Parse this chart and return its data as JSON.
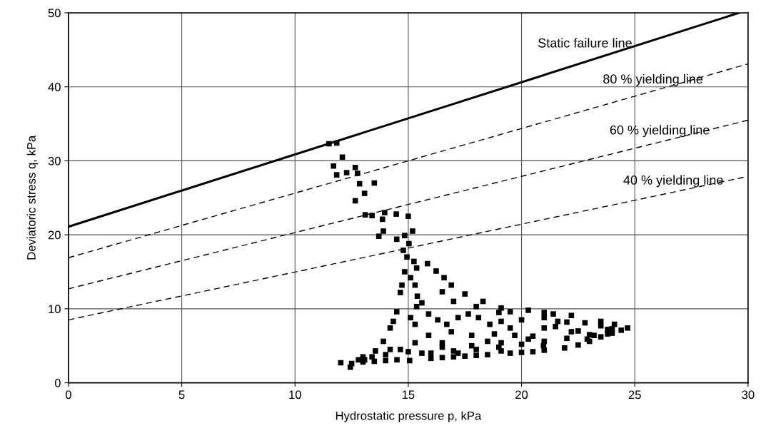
{
  "chart_data": {
    "type": "scatter",
    "xlabel": "Hydrostatic pressure p, kPa",
    "ylabel": "Deviatoric stress q, kPa",
    "xlim": [
      0,
      30
    ],
    "ylim": [
      0,
      50
    ],
    "xticks": [
      0,
      5,
      10,
      15,
      20,
      25,
      30
    ],
    "yticks": [
      0,
      10,
      20,
      30,
      40,
      50
    ],
    "grid": true,
    "legend": false,
    "series": [
      {
        "type": "line",
        "name": "Static failure line",
        "color": "#000000",
        "line_style": "solid",
        "marker": "none",
        "x": [
          0,
          29.6
        ],
        "values": [
          21.1,
          50
        ]
      },
      {
        "type": "line",
        "name": "80 % yielding line",
        "color": "#000000",
        "line_style": "dashed",
        "marker": "none",
        "x": [
          0,
          30
        ],
        "values": [
          16.9,
          43.1
        ]
      },
      {
        "type": "line",
        "name": "60 % yielding line",
        "color": "#000000",
        "line_style": "dashed",
        "marker": "none",
        "x": [
          0,
          30
        ],
        "values": [
          12.7,
          35.5
        ]
      },
      {
        "type": "line",
        "name": "40 % yielding line",
        "color": "#000000",
        "line_style": "dashed",
        "marker": "none",
        "x": [
          0,
          30
        ],
        "values": [
          8.5,
          27.9
        ]
      },
      {
        "color": "#000000",
        "marker": "square",
        "x": [
          11.5,
          11.84,
          12.09,
          11.7,
          11.84,
          12.28,
          12.66,
          12.76,
          12.85,
          13.5,
          13.07,
          12.66,
          13.1,
          13.4,
          13.96,
          14.47,
          15.0,
          13.86,
          13.9,
          13.7,
          14.49,
          14.84,
          15.19,
          15.03,
          14.78,
          14.94,
          15.25,
          15.37,
          15.85,
          16.23,
          16.58,
          16.9,
          17.5,
          18.3,
          19.1,
          19.5,
          20.3,
          21.0,
          21.4,
          22.2,
          22.8,
          23.5,
          24.1,
          24.68,
          23.8,
          22.9,
          21.9,
          20.97,
          15.06,
          12.44,
          12.02,
          13.07,
          13.55,
          13.9,
          14.2,
          14.34,
          14.49,
          14.65,
          14.72,
          14.84,
          15.1,
          15.3,
          15.4,
          15.6,
          15.37,
          15.1,
          15.3,
          15.9,
          16.3,
          16.7,
          17.2,
          17.65,
          18.1,
          18.6,
          19.1,
          19.5,
          15.9,
          16.9,
          17.8,
          18.8,
          19.7,
          15.3,
          16.5,
          17.8,
          19.1,
          20.3,
          21.0,
          21.6,
          22.2,
          23.2,
          23.8,
          14.65,
          15.6,
          17.2,
          19.1,
          13.4,
          14.2,
          12.5,
          13.0,
          13.5,
          14.0,
          14.5,
          16.0,
          16.5,
          17.0,
          17.5,
          18.0,
          18.5,
          19.5,
          20.0,
          20.5,
          21.0,
          22.5,
          23.0,
          23.5,
          24.0,
          24.4,
          13.0,
          14.0,
          15.0,
          16.0,
          17.0,
          18.0,
          19.0,
          20.0,
          21.0,
          22.0,
          23.0,
          24.0,
          12.8,
          16.5,
          18.5,
          20.5,
          22.5,
          21.5,
          23.5,
          20.0,
          21.0,
          22.0,
          19.0,
          18.0,
          17.0,
          16.5
        ],
        "values": [
          32.3,
          32.4,
          30.5,
          29.3,
          28.1,
          28.4,
          29.1,
          28.3,
          26.9,
          27.0,
          25.6,
          24.6,
          22.7,
          22.6,
          23.0,
          22.8,
          22.5,
          22.1,
          20.5,
          19.8,
          19.4,
          19.9,
          20.5,
          18.8,
          17.9,
          17.0,
          16.4,
          15.5,
          16.1,
          15.1,
          14.2,
          13.2,
          12.0,
          11.0,
          10.1,
          9.6,
          9.8,
          9.5,
          9.3,
          9.1,
          8.1,
          8.3,
          7.9,
          7.4,
          6.6,
          5.9,
          4.7,
          5.0,
          3.0,
          2.1,
          2.7,
          3.1,
          4.3,
          5.6,
          7.4,
          8.3,
          9.6,
          12.2,
          13.2,
          15.0,
          14.2,
          13.2,
          11.7,
          10.8,
          10.3,
          8.8,
          7.9,
          9.3,
          8.5,
          7.9,
          8.8,
          9.3,
          8.8,
          7.9,
          8.3,
          7.4,
          6.4,
          6.9,
          6.4,
          6.6,
          6.4,
          5.4,
          5.4,
          5.0,
          5.4,
          5.9,
          7.4,
          8.3,
          6.9,
          6.4,
          7.2,
          4.5,
          4.0,
          4.0,
          4.3,
          3.5,
          4.5,
          2.6,
          2.8,
          2.9,
          3.0,
          3.1,
          3.3,
          3.4,
          3.5,
          3.6,
          3.7,
          3.8,
          4.0,
          4.1,
          4.2,
          4.4,
          5.1,
          5.6,
          6.2,
          6.7,
          7.1,
          3.5,
          3.8,
          4.2,
          4.0,
          4.3,
          4.5,
          4.8,
          5.2,
          5.6,
          6.0,
          6.5,
          7.3,
          3.1,
          4.8,
          5.6,
          6.3,
          7.0,
          7.6,
          7.7,
          8.5,
          8.8,
          8.2,
          9.5,
          10.3,
          11.0,
          12.3
        ]
      }
    ]
  }
}
